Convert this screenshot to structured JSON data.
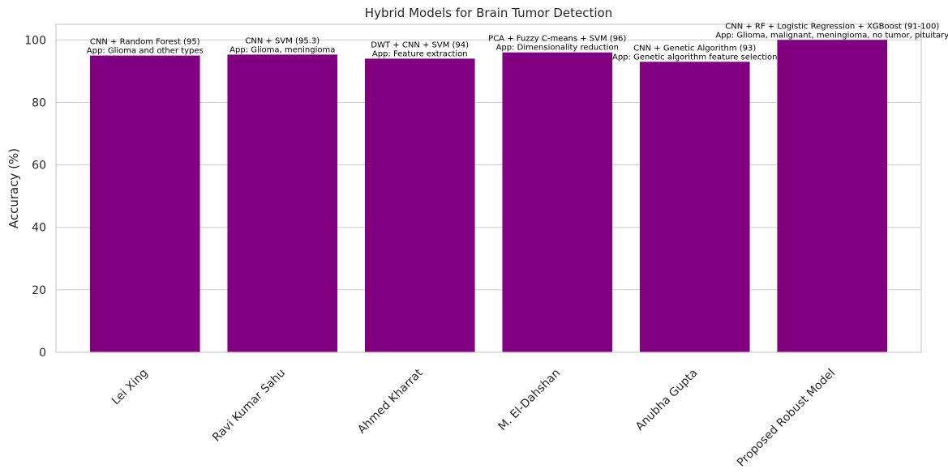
{
  "chart_data": {
    "type": "bar",
    "title": "Hybrid Models for Brain Tumor Detection",
    "xlabel": "",
    "ylabel": "Accuracy (%)",
    "ylim": [
      0,
      105
    ],
    "yticks": [
      0,
      20,
      40,
      60,
      80,
      100
    ],
    "grid": true,
    "bar_color": "#800080",
    "categories": [
      "Lei Xing",
      "Ravi Kumar Sahu",
      "Ahmed Kharrat",
      "M. El-Dahshan",
      "Anubha Gupta",
      "Proposed Robust Model"
    ],
    "values": [
      95,
      95.3,
      94,
      96,
      93,
      100
    ],
    "annotations": [
      {
        "line1": "CNN + Random Forest (95)",
        "line2": "App: Glioma and other types"
      },
      {
        "line1": "CNN + SVM (95.3)",
        "line2": "App: Glioma, meningioma"
      },
      {
        "line1": "DWT + CNN + SVM (94)",
        "line2": "App: Feature extraction"
      },
      {
        "line1": "PCA + Fuzzy C-means + SVM (96)",
        "line2": "App: Dimensionality reduction"
      },
      {
        "line1": "CNN + Genetic Algorithm (93)",
        "line2": "App: Genetic algorithm feature selection"
      },
      {
        "line1": "CNN + RF + Logistic Regression + XGBoost (91-100)",
        "line2": "App: Glioma, malignant, meningioma, no tumor, pituitary"
      }
    ]
  }
}
